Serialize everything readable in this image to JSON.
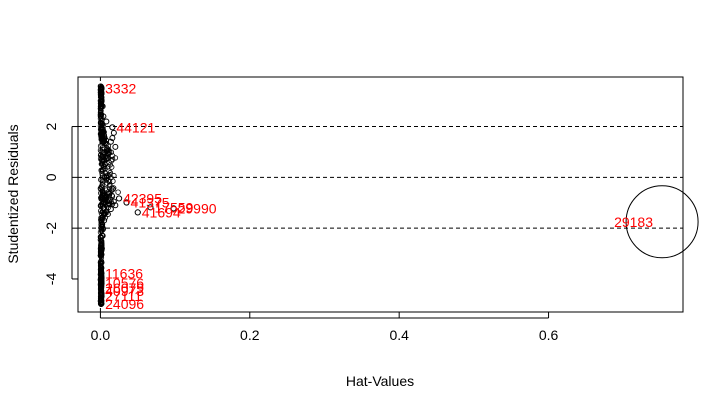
{
  "chart_data": {
    "type": "scatter",
    "title": "",
    "xlabel": "Hat-Values",
    "ylabel": "Studentized Residuals",
    "xlim": [
      -0.03,
      0.78
    ],
    "ylim": [
      -5.3,
      3.95
    ],
    "x_ticks": [
      0.0,
      0.2,
      0.4,
      0.6
    ],
    "x_tick_labels": [
      "0.0",
      "0.2",
      "0.4",
      "0.6"
    ],
    "y_ticks": [
      -4,
      -2,
      0,
      2
    ],
    "y_tick_labels": [
      "-4",
      "-2",
      "0",
      "2"
    ],
    "hlines": [
      -2,
      0,
      2
    ],
    "vlines": [
      0
    ],
    "grid": false,
    "legend": "none",
    "point_color": "#000000",
    "label_color": "#ff0000",
    "bubble": {
      "label": "29183",
      "x": 0.752,
      "y": -1.75,
      "note": "point drawn with circle area proportional to Cook's distance"
    },
    "labeled_points": [
      {
        "label": "3332",
        "x": 0.001,
        "y": 3.5
      },
      {
        "label": "44121",
        "x": 0.016,
        "y": 1.97
      },
      {
        "label": "42395",
        "x": 0.025,
        "y": -0.83
      },
      {
        "label": "41375",
        "x": 0.035,
        "y": -0.99
      },
      {
        "label": "17559",
        "x": 0.067,
        "y": -1.18
      },
      {
        "label": "29990",
        "x": 0.098,
        "y": -1.22
      },
      {
        "label": "41694",
        "x": 0.05,
        "y": -1.38
      },
      {
        "label": "11636",
        "x": 0.001,
        "y": -3.78
      },
      {
        "label": "10576",
        "x": 0.001,
        "y": -4.15
      },
      {
        "label": "26079",
        "x": 0.001,
        "y": -4.35
      },
      {
        "label": "40973",
        "x": 0.001,
        "y": -4.48
      },
      {
        "label": "27111",
        "x": 0.001,
        "y": -4.68
      },
      {
        "label": "24096",
        "x": 0.001,
        "y": -4.98
      }
    ],
    "unlabeled_points": [
      {
        "x": 0.018,
        "y": 1.75
      },
      {
        "x": 0.016,
        "y": 1.55
      },
      {
        "x": 0.014,
        "y": 1.4
      },
      {
        "x": 0.02,
        "y": 1.2
      },
      {
        "x": 0.012,
        "y": 1.0
      },
      {
        "x": 0.01,
        "y": 0.75
      },
      {
        "x": 0.006,
        "y": 0.5
      },
      {
        "x": 0.003,
        "y": 2.8
      },
      {
        "x": 0.004,
        "y": 2.4
      },
      {
        "x": 0.008,
        "y": 2.2
      },
      {
        "x": 0.012,
        "y": -0.65
      },
      {
        "x": 0.018,
        "y": -0.95
      },
      {
        "x": 0.02,
        "y": -1.1
      },
      {
        "x": 0.014,
        "y": -1.25
      },
      {
        "x": 0.01,
        "y": -1.45
      },
      {
        "x": 0.005,
        "y": -1.7
      },
      {
        "x": 0.003,
        "y": -2.3
      },
      {
        "x": 0.002,
        "y": -2.8
      },
      {
        "x": 0.001,
        "y": -3.3
      },
      {
        "x": 0.001,
        "y": -3.6
      }
    ]
  }
}
